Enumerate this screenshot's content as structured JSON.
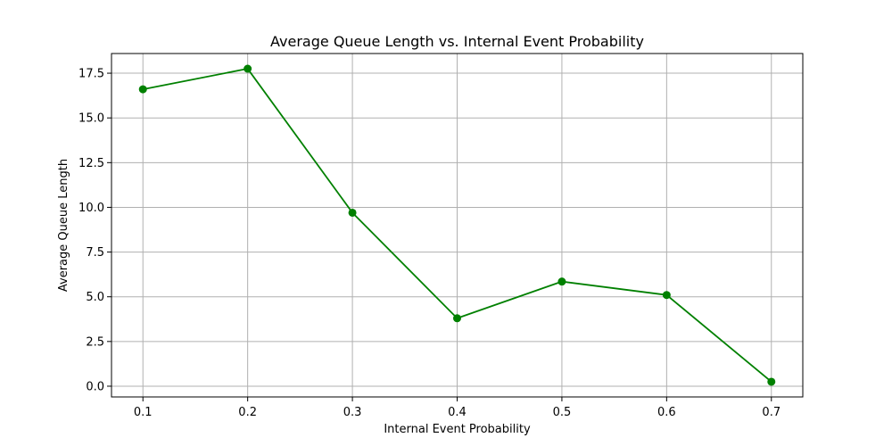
{
  "chart_data": {
    "type": "line",
    "title": "Average Queue Length vs. Internal Event Probability",
    "xlabel": "Internal Event Probability",
    "ylabel": "Average Queue Length",
    "x": [
      0.1,
      0.2,
      0.3,
      0.4,
      0.5,
      0.6,
      0.7
    ],
    "x_tick_labels": [
      "0.1",
      "0.2",
      "0.3",
      "0.4",
      "0.5",
      "0.6",
      "0.7"
    ],
    "y_ticks": [
      0.0,
      2.5,
      5.0,
      7.5,
      10.0,
      12.5,
      15.0,
      17.5
    ],
    "y_tick_labels": [
      "0.0",
      "2.5",
      "5.0",
      "7.5",
      "10.0",
      "12.5",
      "15.0",
      "17.5"
    ],
    "xlim": [
      0.07,
      0.73
    ],
    "ylim": [
      -0.6,
      18.6
    ],
    "grid": true,
    "series": [
      {
        "values": [
          16.6,
          17.75,
          9.7,
          3.8,
          5.85,
          5.1,
          0.25
        ],
        "color": "#008000",
        "marker": "circle"
      }
    ]
  }
}
